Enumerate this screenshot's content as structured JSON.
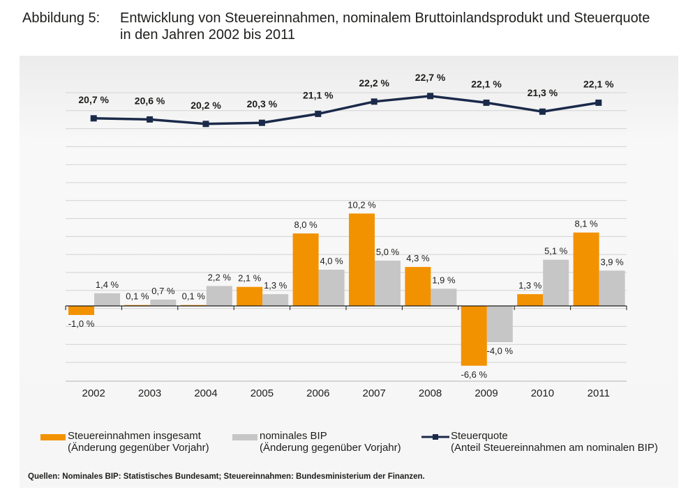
{
  "header": {
    "figure_label": "Abbildung 5:",
    "title": "Entwicklung von Steuereinnahmen, nominalem Bruttoinlandsprodukt und Steuerquote in den Jahren 2002 bis 2011"
  },
  "chart_data": {
    "type": "bar",
    "categories": [
      "2002",
      "2003",
      "2004",
      "2005",
      "2006",
      "2007",
      "2008",
      "2009",
      "2010",
      "2011"
    ],
    "series": [
      {
        "name": "Steuereinnahmen insgesamt",
        "name_line2": "(Änderung gegenüber Vorjahr)",
        "kind": "bar",
        "color": "#f39200",
        "values": [
          -1.0,
          0.1,
          0.1,
          2.1,
          8.0,
          10.2,
          4.3,
          -6.6,
          1.3,
          8.1
        ],
        "labels": [
          "-1,0 %",
          "0,1 %",
          "0,1 %",
          "2,1 %",
          "8,0 %",
          "10,2 %",
          "4,3 %",
          "-6,6 %",
          "1,3 %",
          "8,1 %"
        ]
      },
      {
        "name": "nominales BIP",
        "name_line2": "(Änderung gegenüber Vorjahr)",
        "kind": "bar",
        "color": "#c6c6c6",
        "values": [
          1.4,
          0.7,
          2.2,
          1.3,
          4.0,
          5.0,
          1.9,
          -4.0,
          5.1,
          3.9
        ],
        "labels": [
          "1,4 %",
          "0,7 %",
          "2,2 %",
          "1,3 %",
          "4,0 %",
          "5,0 %",
          "1,9 %",
          "-4,0 %",
          "5,1 %",
          "3,9 %"
        ]
      },
      {
        "name": "Steuerquote",
        "name_line2": "(Anteil Steuereinnahmen am nominalen BIP)",
        "kind": "line",
        "color": "#1b2a4a",
        "values": [
          20.7,
          20.6,
          20.2,
          20.3,
          21.1,
          22.2,
          22.7,
          22.1,
          21.3,
          22.1
        ],
        "labels": [
          "20,7 %",
          "20,6 %",
          "20,2 %",
          "20,3 %",
          "21,1 %",
          "22,2 %",
          "22,7 %",
          "22,1 %",
          "21,3 %",
          "22,1 %"
        ]
      }
    ],
    "bar_axis_range": [
      -8,
      12
    ],
    "line_axis_range": [
      18,
      24
    ],
    "grid": true,
    "legend_position": "bottom"
  },
  "source_note": "Quellen: Nominales BIP: Statistisches Bundesamt; Steuereinnahmen: Bundesministerium der Finanzen."
}
